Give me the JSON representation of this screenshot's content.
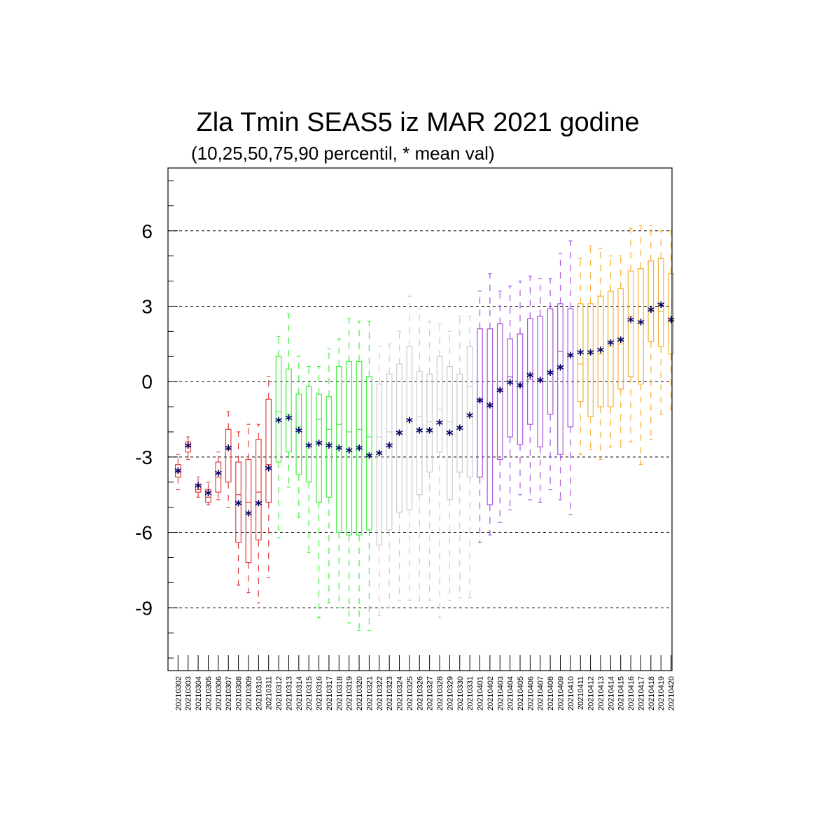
{
  "chart_data": {
    "type": "boxplot",
    "title": "Zla Tmin SEAS5 iz MAR 2021 godine",
    "subtitle": "(10,25,50,75,90 percentil, * mean val)",
    "ylim": [
      -11.5,
      8.5
    ],
    "yticks": [
      6,
      3,
      0,
      -3,
      -6,
      -9
    ],
    "ytick_labels": [
      "6",
      "3",
      "0",
      "-3",
      "-6",
      "-9"
    ],
    "grid": "dashed-horizontal",
    "mean_marker": "*",
    "colors": {
      "march_early": "#e04040",
      "march_mid": "#44ee44",
      "march_late": "#cccccc",
      "april_early": "#aa55dd",
      "april_late": "#f5b030",
      "mean": "#000066"
    },
    "categories": [
      "20210302",
      "20210303",
      "20210304",
      "20210305",
      "20210306",
      "20210307",
      "20210308",
      "20210309",
      "20210310",
      "20210311",
      "20210312",
      "20210313",
      "20210314",
      "20210315",
      "20210316",
      "20210317",
      "20210318",
      "20210319",
      "20210320",
      "20210321",
      "20210322",
      "20210323",
      "20210324",
      "20210325",
      "20210326",
      "20210327",
      "20210328",
      "20210329",
      "20210330",
      "20210331",
      "20210401",
      "20210402",
      "20210403",
      "20210404",
      "20210405",
      "20210406",
      "20210407",
      "20210408",
      "20210409",
      "20210410",
      "20210411",
      "20210412",
      "20210413",
      "20210414",
      "20210415",
      "20210416",
      "20210417",
      "20210418",
      "20210419",
      "20210420"
    ],
    "group": [
      0,
      0,
      0,
      0,
      0,
      0,
      0,
      0,
      0,
      0,
      1,
      1,
      1,
      1,
      1,
      1,
      1,
      1,
      1,
      1,
      2,
      2,
      2,
      2,
      2,
      2,
      2,
      2,
      2,
      2,
      3,
      3,
      3,
      3,
      3,
      3,
      3,
      3,
      3,
      3,
      4,
      4,
      4,
      4,
      4,
      4,
      4,
      4,
      4,
      4
    ],
    "p10": [
      -4.3,
      -3.1,
      -4.6,
      -4.9,
      -4.7,
      -5.0,
      -8.1,
      -8.4,
      -8.8,
      -7.8,
      -6.2,
      -4.2,
      -5.4,
      -6.8,
      -9.4,
      -8.8,
      -9.0,
      -9.6,
      -9.9,
      -9.9,
      -9.3,
      -9.0,
      -8.7,
      -8.7,
      -9.0,
      -8.7,
      -9.4,
      -8.7,
      -8.6,
      -8.6,
      -6.4,
      -6.1,
      -5.6,
      -5.1,
      -4.5,
      -4.7,
      -4.8,
      -4.3,
      -4.7,
      -5.3,
      -2.9,
      -2.7,
      -3.1,
      -2.6,
      -2.6,
      -2.4,
      -3.3,
      -2.3,
      -1.3,
      -1.1
    ],
    "p25": [
      -3.8,
      -2.8,
      -4.4,
      -4.8,
      -4.4,
      -4.0,
      -6.4,
      -7.2,
      -6.3,
      -4.8,
      -3.2,
      -2.8,
      -3.7,
      -4.0,
      -4.8,
      -4.6,
      -6.0,
      -6.1,
      -6.1,
      -5.9,
      -6.5,
      -5.9,
      -5.2,
      -5.1,
      -4.5,
      -3.6,
      -2.8,
      -4.7,
      -3.6,
      -3.8,
      -3.8,
      -4.9,
      -3.1,
      -2.2,
      -2.5,
      -1.7,
      -2.6,
      -1.3,
      -2.9,
      -1.8,
      -0.8,
      -1.4,
      -1.0,
      -1.0,
      -0.3,
      0.2,
      -0.1,
      1.6,
      1.4,
      1.1
    ],
    "p50": [
      -3.6,
      -2.6,
      -4.3,
      -4.6,
      -3.8,
      -2.7,
      -4.5,
      -4.8,
      -4.4,
      -3.3,
      -1.2,
      -1.3,
      -1.8,
      -2.5,
      -1.5,
      -1.9,
      -1.7,
      -2.0,
      -1.9,
      -2.2,
      -2.2,
      -2.0,
      -2.0,
      -1.5,
      -1.4,
      -1.6,
      -1.1,
      -1.6,
      -1.8,
      -0.2,
      -0.8,
      -1.0,
      -0.4,
      0.2,
      -0.2,
      0.1,
      0.0,
      0.4,
      1.2,
      1.0,
      0.7,
      1.1,
      1.1,
      1.4,
      1.5,
      2.6,
      2.4,
      2.8,
      2.8,
      2.4
    ],
    "p75": [
      -3.3,
      -2.4,
      -4.1,
      -4.3,
      -3.2,
      -1.9,
      -3.2,
      -3.1,
      -2.3,
      -0.7,
      1.0,
      0.5,
      -0.5,
      -0.2,
      -0.5,
      -0.6,
      0.6,
      0.8,
      0.8,
      0.2,
      -0.1,
      0.3,
      0.7,
      1.4,
      0.4,
      0.3,
      1.0,
      0.6,
      0.3,
      1.4,
      2.1,
      2.1,
      2.3,
      1.7,
      1.9,
      2.5,
      2.6,
      2.9,
      3.1,
      2.9,
      3.1,
      3.1,
      3.4,
      3.6,
      3.7,
      4.4,
      4.5,
      4.8,
      4.9,
      4.3
    ],
    "p90": [
      -2.9,
      -2.2,
      -3.8,
      -4.0,
      -2.8,
      -1.2,
      -2.0,
      -1.7,
      -1.7,
      0.2,
      1.8,
      2.7,
      1.0,
      0.6,
      0.6,
      1.3,
      1.7,
      2.5,
      2.4,
      2.4,
      1.4,
      1.5,
      2.0,
      3.4,
      2.9,
      2.4,
      2.3,
      2.0,
      2.6,
      2.6,
      3.6,
      4.3,
      3.6,
      3.8,
      4.0,
      4.2,
      4.1,
      4.1,
      5.1,
      5.6,
      4.9,
      5.4,
      5.3,
      5.0,
      5.0,
      6.1,
      6.2,
      6.2,
      6.0,
      6.0
    ],
    "mean": [
      -3.6,
      -2.6,
      -4.2,
      -4.5,
      -3.7,
      -2.7,
      -4.9,
      -5.3,
      -4.9,
      -3.5,
      -1.6,
      -1.5,
      -2.0,
      -2.6,
      -2.5,
      -2.6,
      -2.7,
      -2.8,
      -2.7,
      -3.0,
      -2.9,
      -2.6,
      -2.1,
      -1.6,
      -2.0,
      -2.0,
      -1.7,
      -2.1,
      -1.9,
      -1.4,
      -0.8,
      -1.0,
      -0.4,
      -0.1,
      -0.2,
      0.2,
      0.0,
      0.3,
      0.5,
      1.0,
      1.1,
      1.1,
      1.2,
      1.5,
      1.6,
      2.4,
      2.3,
      2.8,
      3.0,
      2.4
    ]
  }
}
